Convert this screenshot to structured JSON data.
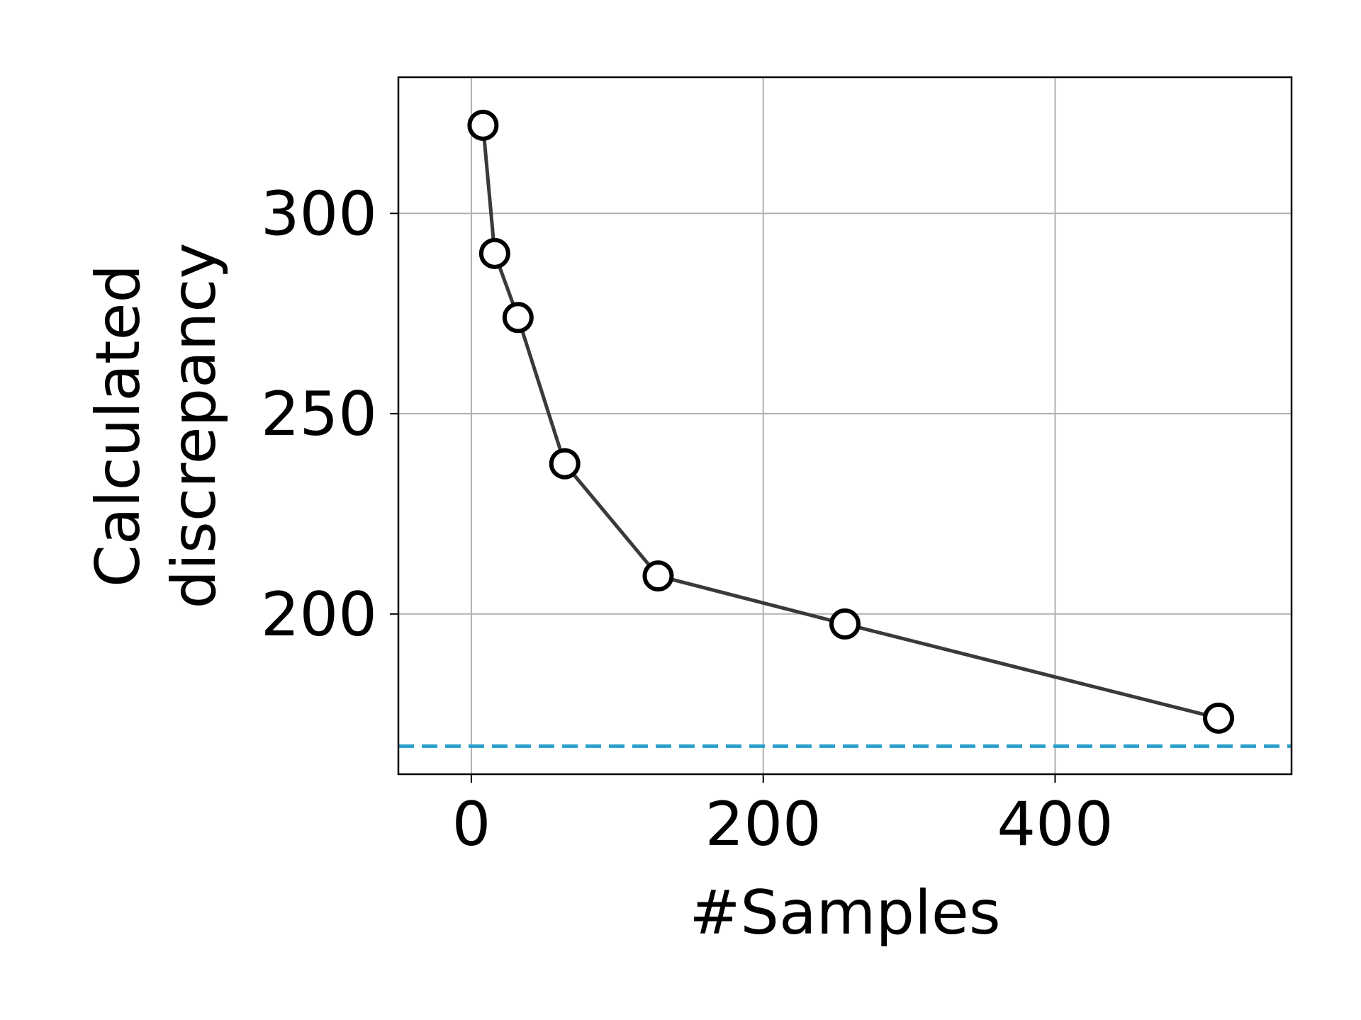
{
  "chart_data": {
    "type": "line",
    "title": "",
    "xlabel": "#Samples",
    "ylabel_lines": [
      "Calculated",
      "discrepancy"
    ],
    "xlim": [
      -50,
      562
    ],
    "ylim": [
      160,
      334
    ],
    "x_ticks": [
      0,
      200,
      400
    ],
    "y_ticks": [
      200,
      250,
      300
    ],
    "grid": true,
    "series": [
      {
        "x": [
          8,
          16,
          32,
          64,
          128,
          256,
          512
        ],
        "y": [
          322,
          290,
          274,
          237.5,
          209.5,
          197.5,
          174
        ],
        "color": "#3a3a3a",
        "marker": "hollow-circle"
      }
    ],
    "reference_line": {
      "y": 167,
      "color": "#2a9fcc",
      "style": "dashed"
    }
  }
}
